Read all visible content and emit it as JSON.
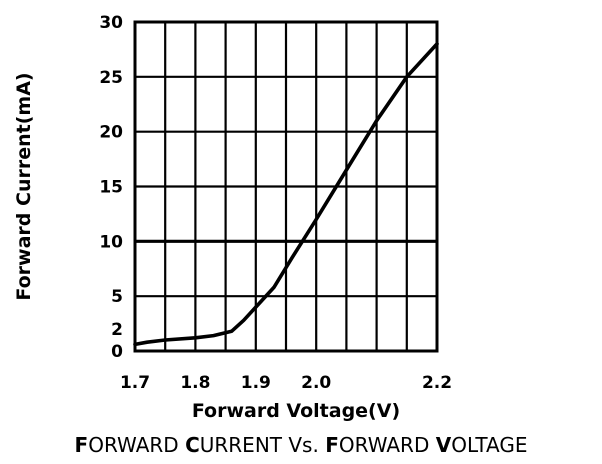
{
  "chart_data": {
    "type": "line",
    "title": "FORWARD CURRENT Vs. FORWARD VOLTAGE",
    "title_parts": [
      {
        "text": "F",
        "initial": true
      },
      {
        "text": "ORWARD ",
        "initial": false
      },
      {
        "text": "C",
        "initial": true
      },
      {
        "text": "URRENT ",
        "initial": false
      },
      {
        "text": "Vs. ",
        "initial": false
      },
      {
        "text": "F",
        "initial": true
      },
      {
        "text": "ORWARD ",
        "initial": false
      },
      {
        "text": "V",
        "initial": true
      },
      {
        "text": "OLTAGE",
        "initial": false
      }
    ],
    "xlabel": "Forward Voltage(V)",
    "ylabel": "Forward Current(mA)",
    "xlim": [
      1.7,
      2.2
    ],
    "ylim": [
      0,
      30
    ],
    "x_ticks": [
      {
        "value": 1.7,
        "label": "1.7"
      },
      {
        "value": 1.8,
        "label": "1.8"
      },
      {
        "value": 1.9,
        "label": "1.9"
      },
      {
        "value": 2.0,
        "label": "2.0"
      },
      {
        "value": 2.2,
        "label": "2.2"
      }
    ],
    "y_ticks": [
      {
        "value": 0,
        "label": "0"
      },
      {
        "value": 2,
        "label": "2"
      },
      {
        "value": 5,
        "label": "5"
      },
      {
        "value": 10,
        "label": "10"
      },
      {
        "value": 15,
        "label": "15"
      },
      {
        "value": 20,
        "label": "20"
      },
      {
        "value": 25,
        "label": "25"
      },
      {
        "value": 30,
        "label": "30"
      }
    ],
    "grid": true,
    "x_grid": [
      1.7,
      1.75,
      1.8,
      1.85,
      1.9,
      1.95,
      2.0,
      2.05,
      2.1,
      2.15,
      2.2
    ],
    "y_grid": [
      0,
      5,
      10,
      15,
      20,
      25,
      30
    ],
    "y_grid_bold": [
      10
    ],
    "series": [
      {
        "color": "#000000",
        "x": [
          1.7,
          1.72,
          1.75,
          1.8,
          1.83,
          1.86,
          1.88,
          1.9,
          1.93,
          1.96,
          2.0,
          2.05,
          2.1,
          2.15,
          2.2
        ],
        "y": [
          0.6,
          0.8,
          1.0,
          1.2,
          1.4,
          1.8,
          2.8,
          4.0,
          5.8,
          8.5,
          12.0,
          16.5,
          21.0,
          25.0,
          28.0
        ]
      }
    ]
  }
}
